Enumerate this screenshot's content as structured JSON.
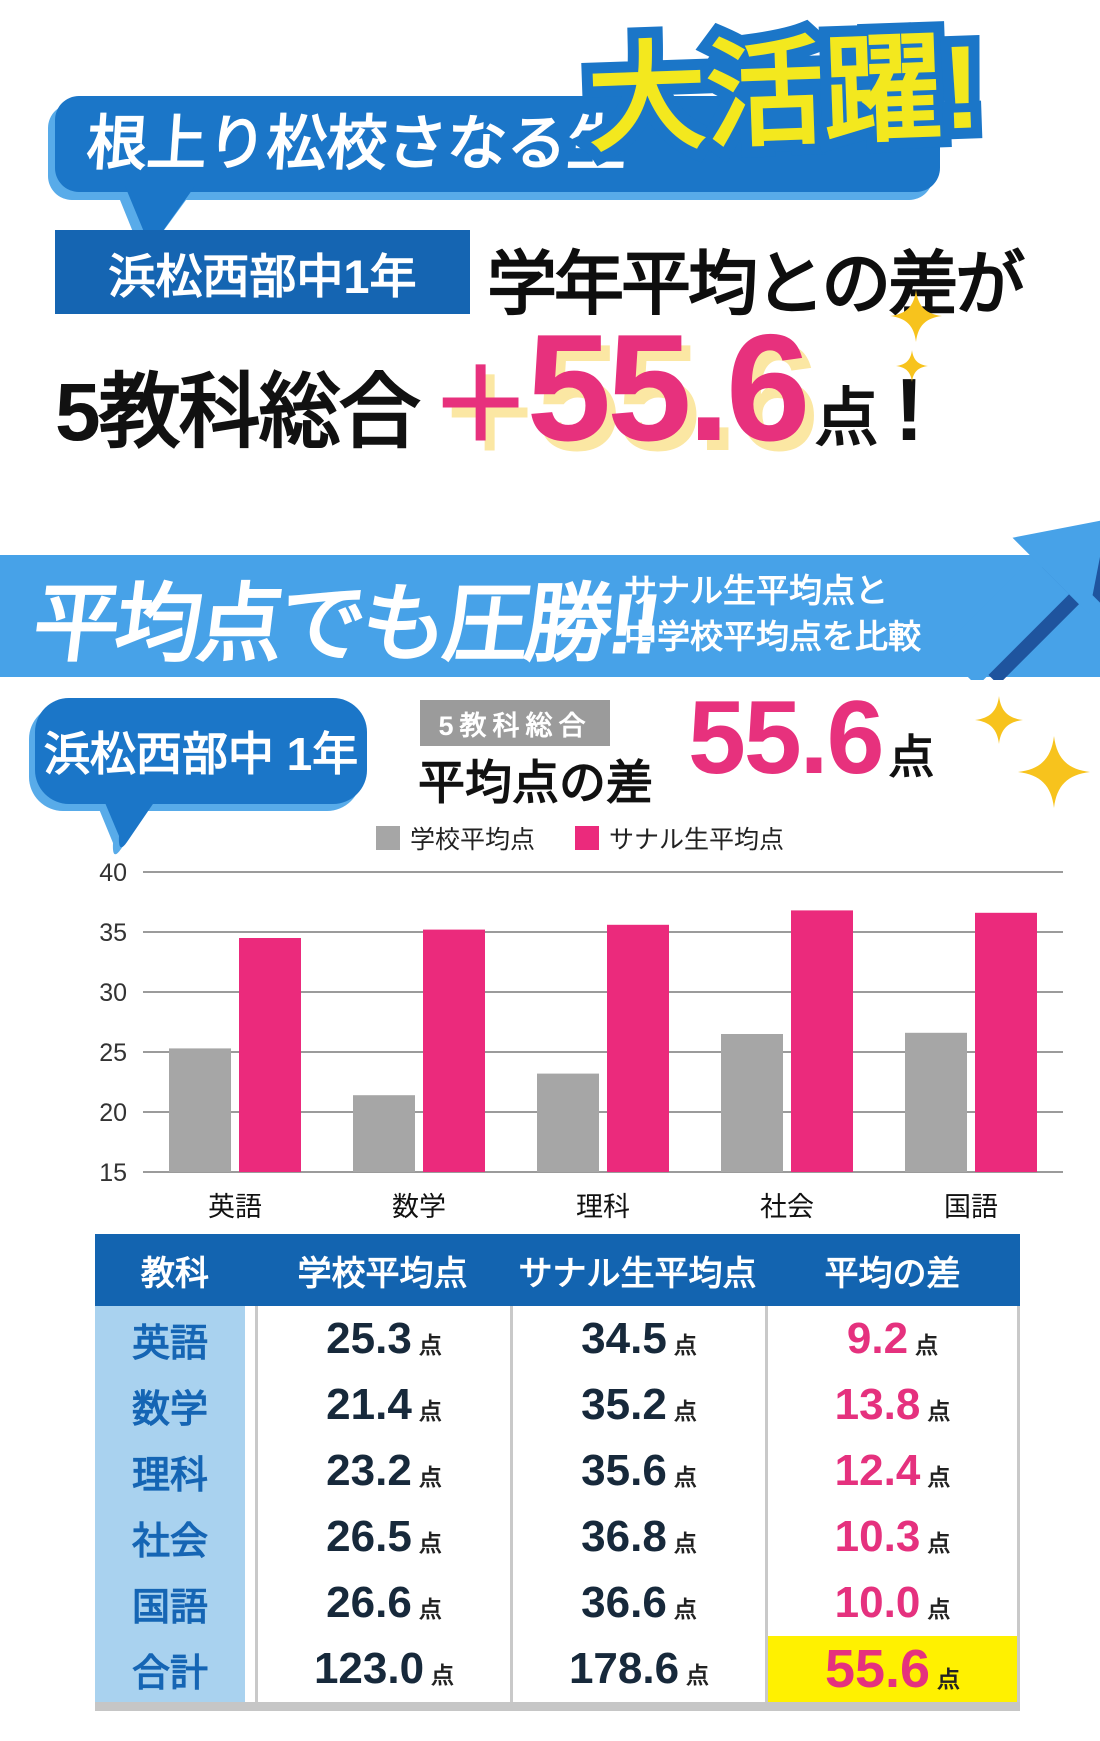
{
  "hero": {
    "bubble_label": "根上り松校さなる生",
    "highlight": "大活躍!",
    "school_tag": "浜松西部中1年",
    "headline": "学年平均との差が",
    "subject_label": "5教科総合",
    "score_prefix": "＋",
    "score": "55.6",
    "score_unit": "点",
    "score_bang": "!"
  },
  "banner": {
    "title": "平均点でも圧勝!!",
    "subtitle_lines": [
      "サナル生平均点と",
      "中学校平均点を比較"
    ]
  },
  "summary": {
    "school_tag": "浜松西部中 1年",
    "category_badge": "5教科総合",
    "diff_label": "平均点の差",
    "score": "55.6",
    "score_unit": "点"
  },
  "chart_data": {
    "type": "bar",
    "categories": [
      "英語",
      "数学",
      "理科",
      "社会",
      "国語"
    ],
    "series": [
      {
        "name": "学校平均点",
        "color": "#a6a6a6",
        "values": [
          25.3,
          21.4,
          23.2,
          26.5,
          26.6
        ]
      },
      {
        "name": "サナル生平均点",
        "color": "#eb2a7c",
        "values": [
          34.5,
          35.2,
          35.6,
          36.8,
          36.6
        ]
      }
    ],
    "ylim": [
      15,
      40
    ],
    "yticks": [
      15,
      20,
      25,
      30,
      35,
      40
    ],
    "grid": true,
    "legend_position": "top"
  },
  "table": {
    "headers": [
      "教科",
      "学校平均点",
      "サナル生平均点",
      "平均の差"
    ],
    "unit": "点",
    "rows": [
      {
        "subject": "英語",
        "school": "25.3",
        "sanaru": "34.5",
        "diff": "9.2",
        "is_total": false
      },
      {
        "subject": "数学",
        "school": "21.4",
        "sanaru": "35.2",
        "diff": "13.8",
        "is_total": false
      },
      {
        "subject": "理科",
        "school": "23.2",
        "sanaru": "35.6",
        "diff": "12.4",
        "is_total": false
      },
      {
        "subject": "社会",
        "school": "26.5",
        "sanaru": "36.8",
        "diff": "10.3",
        "is_total": false
      },
      {
        "subject": "国語",
        "school": "26.6",
        "sanaru": "36.6",
        "diff": "10.0",
        "is_total": false
      },
      {
        "subject": "合計",
        "school": "123.0",
        "sanaru": "178.6",
        "diff": "55.6",
        "is_total": true
      }
    ]
  },
  "colors": {
    "bubble_blue": "#1b76c8",
    "bubble_shadow_blue": "#58abe9",
    "tag_blue": "#1565b2",
    "banner_blue": "#47a2e8",
    "arrow_navy": "#1f549e",
    "pop_yellow": "#f3e81e",
    "accent_pink": "#e7317d",
    "cream_shadow": "#fbe7a3",
    "sparkle_gold": "#f7c31d",
    "badge_gray": "#9b9b9b",
    "bar_gray": "#a6a6a6",
    "bar_pink": "#eb2a7c",
    "table_header_blue": "#1364b0",
    "subject_bg": "#a9d2ef",
    "subject_text": "#1565b4",
    "value_navy": "#17293b",
    "diff_pink": "#e5317e",
    "total_highlight": "#fff100"
  }
}
